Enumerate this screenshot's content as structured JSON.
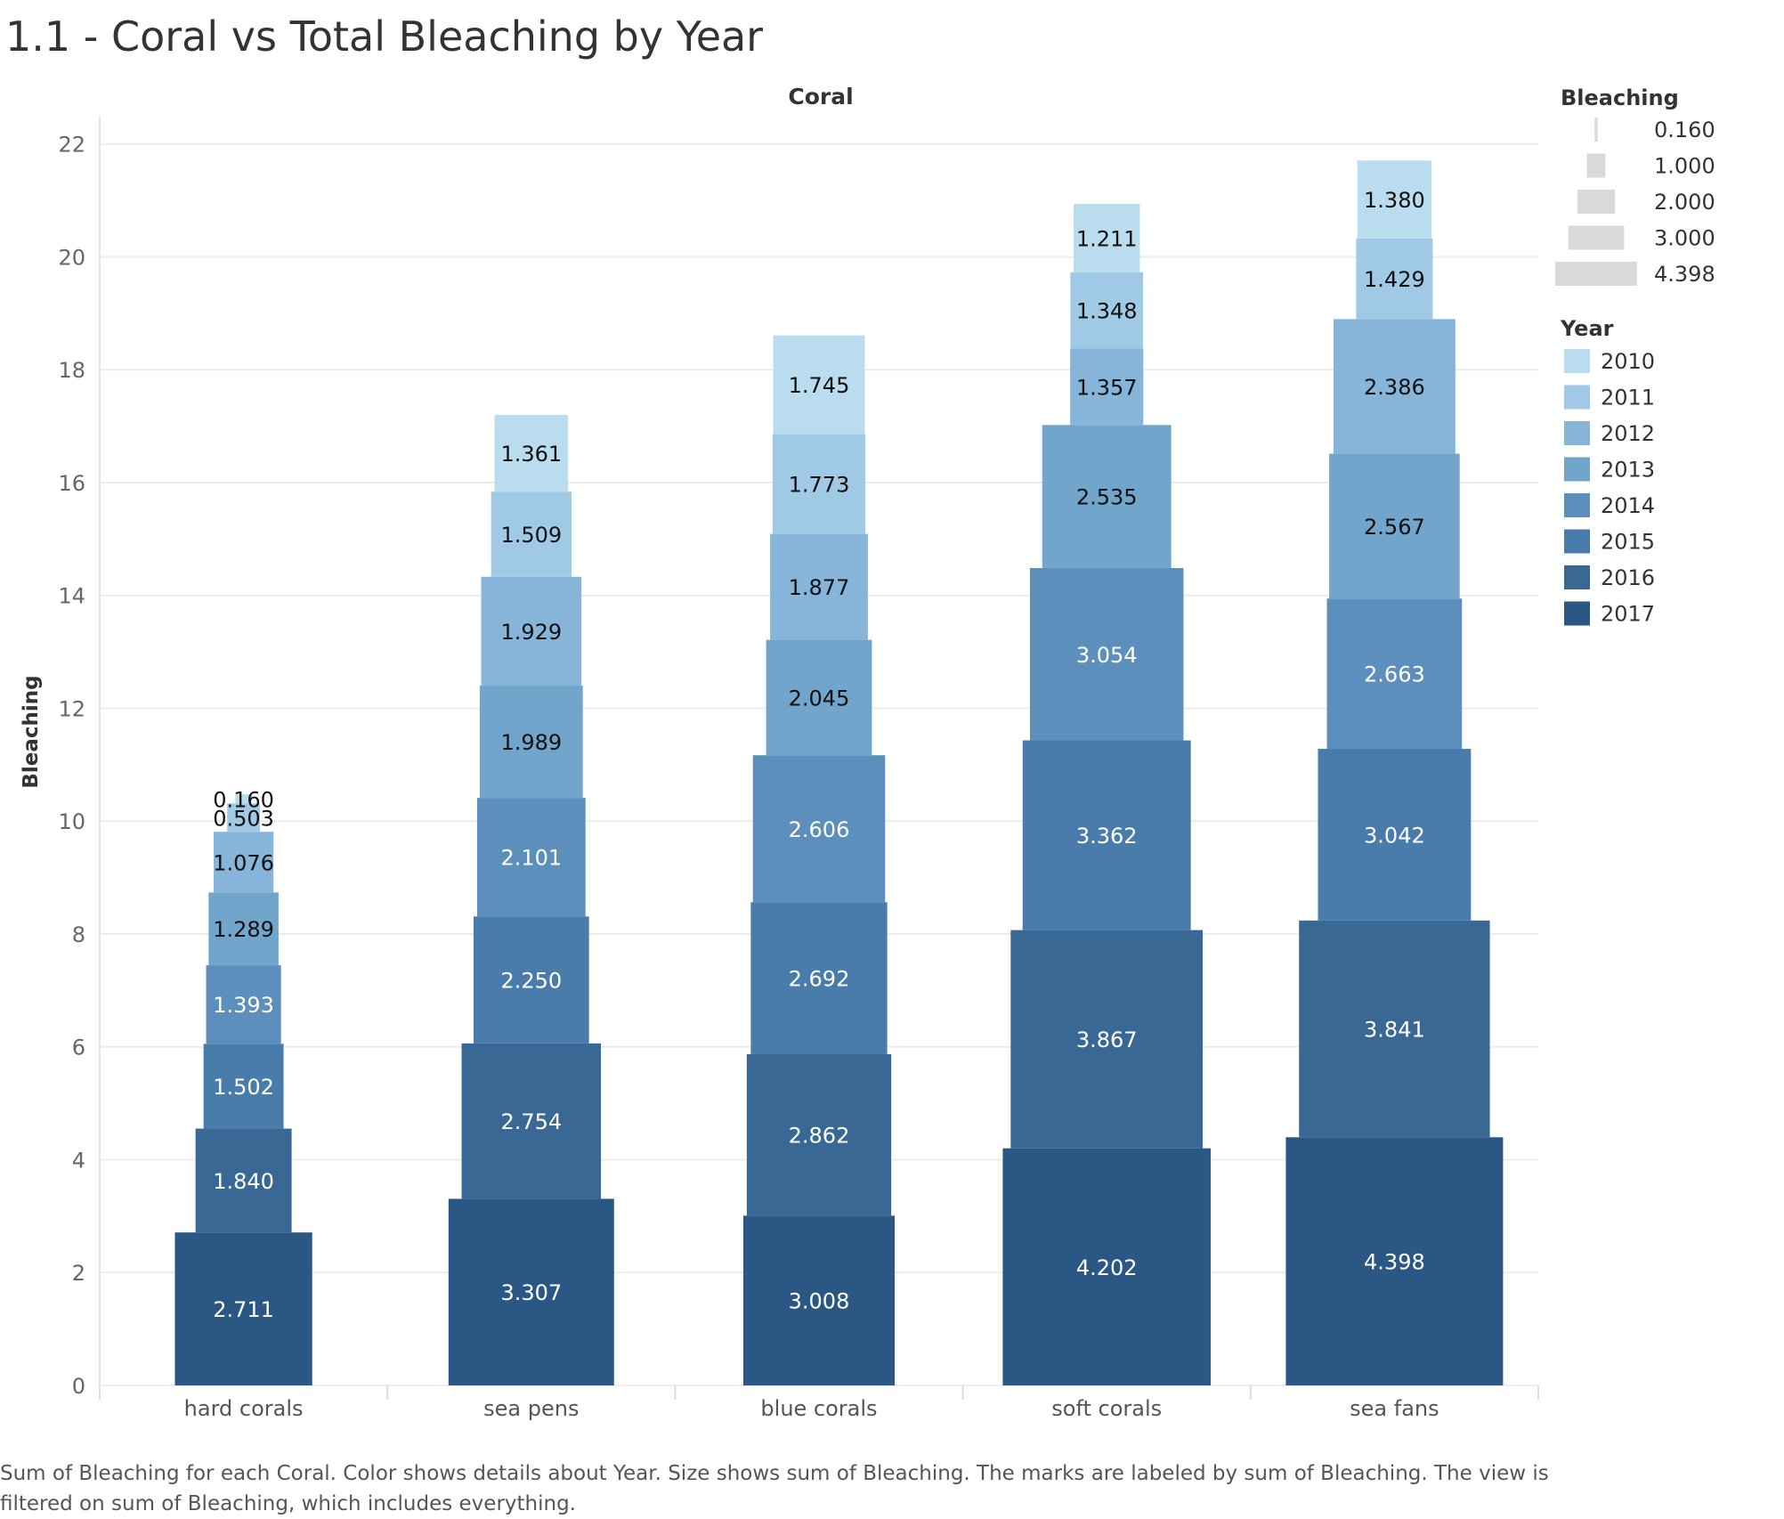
{
  "title": "1.1 - Coral vs Total Bleaching by Year",
  "caption": "Sum of Bleaching for each Coral.  Color shows details about Year.  Size shows sum of Bleaching.  The marks are labeled by sum of Bleaching. The view is filtered on sum of Bleaching, which includes everything.",
  "chart_data": {
    "type": "bar",
    "stacked": true,
    "column_header": "Coral",
    "xlabel": "",
    "ylabel": "Bleaching",
    "ylim": [
      0,
      22.5
    ],
    "y_ticks": [
      "0",
      "2",
      "4",
      "6",
      "8",
      "10",
      "12",
      "14",
      "16",
      "18",
      "20",
      "22"
    ],
    "grid": true,
    "categories": [
      "hard corals",
      "sea pens",
      "blue corals",
      "soft corals",
      "sea fans"
    ],
    "series": [
      {
        "name": "2017",
        "color": "#2b5784",
        "values": [
          2.711,
          3.307,
          3.008,
          4.202,
          4.398
        ],
        "labels": [
          "2.711",
          "3.307",
          "3.008",
          "4.202",
          "4.398"
        ]
      },
      {
        "name": "2016",
        "color": "#386893",
        "values": [
          1.84,
          2.754,
          2.862,
          3.867,
          3.841
        ],
        "labels": [
          "1.840",
          "2.754",
          "2.862",
          "3.867",
          "3.841"
        ]
      },
      {
        "name": "2015",
        "color": "#4a7cab",
        "values": [
          1.502,
          2.25,
          2.692,
          3.362,
          3.042
        ],
        "labels": [
          "1.502",
          "2.250",
          "2.692",
          "3.362",
          "3.042"
        ]
      },
      {
        "name": "2014",
        "color": "#5c8fbb",
        "values": [
          1.393,
          2.101,
          2.606,
          3.054,
          2.663
        ],
        "labels": [
          "1.393",
          "2.101",
          "2.606",
          "3.054",
          "2.663"
        ]
      },
      {
        "name": "2013",
        "color": "#72a5cb",
        "values": [
          1.289,
          1.989,
          2.045,
          2.535,
          2.567
        ],
        "labels": [
          "1.289",
          "1.989",
          "2.045",
          "2.535",
          "2.567"
        ]
      },
      {
        "name": "2012",
        "color": "#86b5d9",
        "values": [
          1.076,
          1.929,
          1.877,
          1.357,
          2.386
        ],
        "labels": [
          "1.076",
          "1.929",
          "1.877",
          "1.357",
          "2.386"
        ]
      },
      {
        "name": "2011",
        "color": "#a0c9e5",
        "values": [
          0.503,
          1.509,
          1.773,
          1.348,
          1.429
        ],
        "labels": [
          "0.503",
          "1.509",
          "1.773",
          "1.348",
          "1.429"
        ]
      },
      {
        "name": "2010",
        "color": "#b9dcee",
        "values": [
          0.16,
          1.361,
          1.745,
          1.211,
          1.38
        ],
        "labels": [
          "0.160",
          "1.361",
          "1.745",
          "1.211",
          "1.380"
        ]
      }
    ],
    "legend": {
      "size_title": "Bleaching",
      "size_items": [
        {
          "label": "0.160",
          "value": 0.16
        },
        {
          "label": "1.000",
          "value": 1.0
        },
        {
          "label": "2.000",
          "value": 2.0
        },
        {
          "label": "3.000",
          "value": 3.0
        },
        {
          "label": "4.398",
          "value": 4.398
        }
      ],
      "size_color": "#d9d9d9",
      "color_title": "Year",
      "color_items": [
        {
          "label": "2010",
          "color": "#b9dcee"
        },
        {
          "label": "2011",
          "color": "#a0c9e5"
        },
        {
          "label": "2012",
          "color": "#86b5d9"
        },
        {
          "label": "2013",
          "color": "#72a5cb"
        },
        {
          "label": "2014",
          "color": "#5c8fbb"
        },
        {
          "label": "2015",
          "color": "#4a7cab"
        },
        {
          "label": "2016",
          "color": "#386893"
        },
        {
          "label": "2017",
          "color": "#2b5784"
        }
      ],
      "placement": "right"
    }
  }
}
